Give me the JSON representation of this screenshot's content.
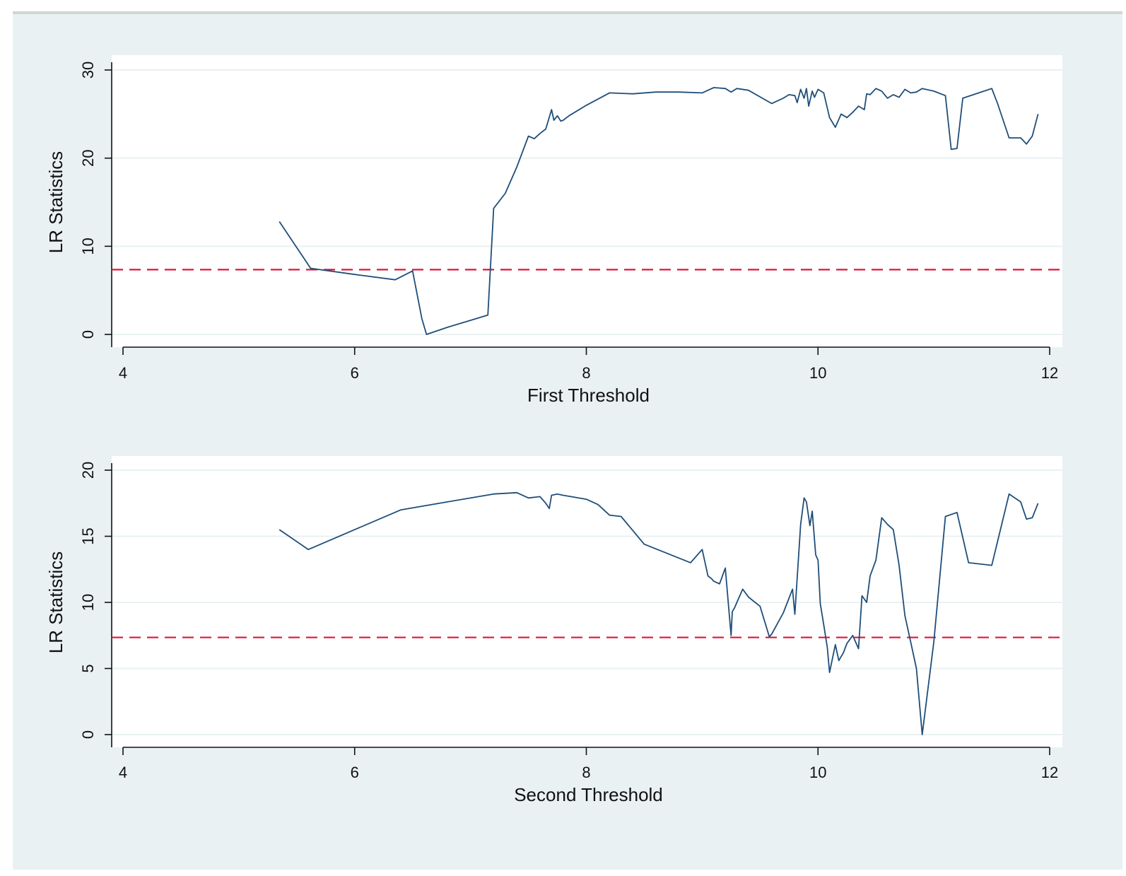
{
  "chart_data": [
    {
      "type": "line",
      "xlabel": "First Threshold",
      "ylabel": "LR Statistics",
      "xlim": [
        4,
        12
      ],
      "ylim": [
        0,
        30
      ],
      "xticks": [
        "4",
        "6",
        "8",
        "10",
        "12"
      ],
      "yticks": [
        "0",
        "10",
        "20",
        "30"
      ],
      "critical_value": 7.35,
      "series": [
        {
          "name": "LR Statistics",
          "color": "#1f4e79",
          "x": [
            5.35,
            5.62,
            6.0,
            6.35,
            6.5,
            6.58,
            6.62,
            6.8,
            7.0,
            7.15,
            7.2,
            7.3,
            7.4,
            7.5,
            7.55,
            7.6,
            7.65,
            7.7,
            7.72,
            7.75,
            7.78,
            7.8,
            7.85,
            8.0,
            8.2,
            8.4,
            8.6,
            8.8,
            9.0,
            9.1,
            9.2,
            9.25,
            9.3,
            9.4,
            9.6,
            9.7,
            9.75,
            9.8,
            9.82,
            9.85,
            9.88,
            9.9,
            9.92,
            9.95,
            9.97,
            10.0,
            10.05,
            10.1,
            10.15,
            10.2,
            10.25,
            10.3,
            10.35,
            10.4,
            10.42,
            10.45,
            10.5,
            10.55,
            10.6,
            10.65,
            10.7,
            10.75,
            10.8,
            10.85,
            10.9,
            11.0,
            11.1,
            11.15,
            11.2,
            11.25,
            11.5,
            11.55,
            11.65,
            11.75,
            11.8,
            11.85,
            11.9
          ],
          "y": [
            12.8,
            7.5,
            6.8,
            6.2,
            7.2,
            1.8,
            0.0,
            0.8,
            1.6,
            2.2,
            14.3,
            16.0,
            19.0,
            22.5,
            22.2,
            22.8,
            23.3,
            25.5,
            24.3,
            24.8,
            24.2,
            24.3,
            24.8,
            26.0,
            27.4,
            27.3,
            27.5,
            27.5,
            27.4,
            28.0,
            27.9,
            27.5,
            27.9,
            27.7,
            26.2,
            26.8,
            27.2,
            27.1,
            26.3,
            27.8,
            26.8,
            27.9,
            25.9,
            27.6,
            26.9,
            27.8,
            27.4,
            24.6,
            23.5,
            25.0,
            24.6,
            25.2,
            25.9,
            25.5,
            27.3,
            27.2,
            27.9,
            27.6,
            26.8,
            27.2,
            26.9,
            27.8,
            27.4,
            27.5,
            27.9,
            27.6,
            27.1,
            21.0,
            21.1,
            26.8,
            27.9,
            26.2,
            22.3,
            22.3,
            21.6,
            22.5,
            25.0
          ]
        }
      ]
    },
    {
      "type": "line",
      "xlabel": "Second Threshold",
      "ylabel": "LR Statistics",
      "xlim": [
        4,
        12
      ],
      "ylim": [
        0,
        20
      ],
      "xticks": [
        "4",
        "6",
        "8",
        "10",
        "12"
      ],
      "yticks": [
        "0",
        "5",
        "10",
        "15",
        "20"
      ],
      "critical_value": 7.35,
      "series": [
        {
          "name": "LR Statistics",
          "color": "#1f4e79",
          "x": [
            5.35,
            5.6,
            6.0,
            6.4,
            6.8,
            7.2,
            7.4,
            7.5,
            7.6,
            7.65,
            7.68,
            7.7,
            7.75,
            7.8,
            8.0,
            8.1,
            8.2,
            8.3,
            8.5,
            8.7,
            8.9,
            9.0,
            9.05,
            9.08,
            9.1,
            9.15,
            9.2,
            9.25,
            9.26,
            9.28,
            9.3,
            9.35,
            9.4,
            9.5,
            9.58,
            9.6,
            9.7,
            9.78,
            9.8,
            9.85,
            9.88,
            9.9,
            9.93,
            9.95,
            9.98,
            10.0,
            10.02,
            10.05,
            10.08,
            10.1,
            10.15,
            10.18,
            10.22,
            10.25,
            10.3,
            10.35,
            10.38,
            10.42,
            10.45,
            10.5,
            10.55,
            10.6,
            10.65,
            10.7,
            10.75,
            10.8,
            10.85,
            10.9,
            11.0,
            11.1,
            11.2,
            11.3,
            11.5,
            11.65,
            11.75,
            11.8,
            11.85,
            11.9
          ],
          "y": [
            15.5,
            14.0,
            15.5,
            17.0,
            17.6,
            18.2,
            18.3,
            17.9,
            18.0,
            17.5,
            17.1,
            18.1,
            18.2,
            18.1,
            17.8,
            17.4,
            16.6,
            16.5,
            14.4,
            13.7,
            13.0,
            14.0,
            12.0,
            11.8,
            11.6,
            11.4,
            12.6,
            7.5,
            9.3,
            9.6,
            10.0,
            11.0,
            10.4,
            9.7,
            7.4,
            7.6,
            9.2,
            11.0,
            9.1,
            15.9,
            17.9,
            17.6,
            15.8,
            16.9,
            13.6,
            13.2,
            9.9,
            8.3,
            6.6,
            4.7,
            6.8,
            5.6,
            6.2,
            6.9,
            7.5,
            6.5,
            10.5,
            10.0,
            12.0,
            13.2,
            16.4,
            15.9,
            15.5,
            12.8,
            9.0,
            7.0,
            5.0,
            0.0,
            7.0,
            16.5,
            16.8,
            13.0,
            12.8,
            18.2,
            17.6,
            16.3,
            16.4,
            17.5
          ]
        }
      ]
    }
  ]
}
